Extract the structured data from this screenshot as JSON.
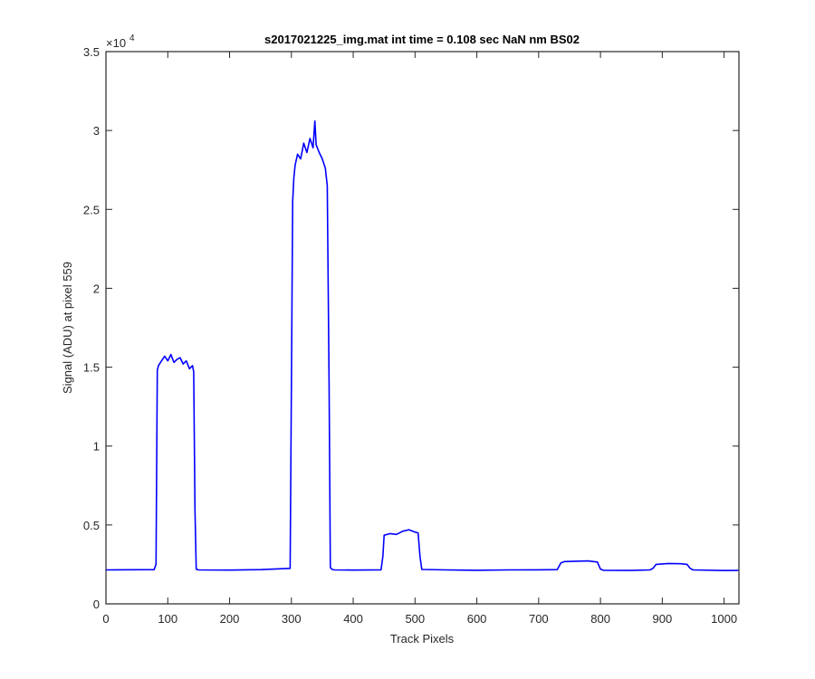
{
  "chart_data": {
    "type": "line",
    "title": "s2017021225_img.mat int time = 0.108 sec  NaN nm BS02",
    "xlabel": "Track Pixels",
    "ylabel": "Signal (ADU) at pixel 559",
    "xlim": [
      0,
      1024
    ],
    "ylim": [
      0,
      35000
    ],
    "x_ticks": [
      0,
      100,
      200,
      300,
      400,
      500,
      600,
      700,
      800,
      900,
      1000
    ],
    "x_tick_labels": [
      "0",
      "100",
      "200",
      "300",
      "400",
      "500",
      "600",
      "700",
      "800",
      "900",
      "1000"
    ],
    "y_ticks": [
      0,
      5000,
      10000,
      15000,
      20000,
      25000,
      30000,
      35000
    ],
    "y_tick_labels": [
      "0",
      "0.5",
      "1",
      "1.5",
      "2",
      "2.5",
      "3",
      "3.5"
    ],
    "y_exponent_label": "×10",
    "y_exponent_power": "4",
    "grid": false,
    "line_color": "#0000ff",
    "series": [
      {
        "x": [
          0,
          78,
          81,
          83,
          85,
          90,
          95,
          100,
          105,
          110,
          115,
          120,
          125,
          130,
          135,
          140,
          142,
          144,
          146,
          150,
          200,
          250,
          298,
          302,
          304,
          306,
          310,
          315,
          320,
          325,
          330,
          335,
          338,
          340,
          345,
          350,
          355,
          358,
          361,
          363,
          366,
          370,
          400,
          445,
          448,
          450,
          460,
          470,
          480,
          490,
          500,
          505,
          508,
          511,
          550,
          600,
          650,
          700,
          730,
          736,
          742,
          760,
          780,
          795,
          800,
          805,
          850,
          880,
          885,
          890,
          910,
          930,
          940,
          945,
          950,
          1000,
          1023
        ],
        "y": [
          2150,
          2170,
          2500,
          14800,
          15100,
          15400,
          15700,
          15400,
          15800,
          15300,
          15500,
          15600,
          15200,
          15400,
          14900,
          15100,
          14700,
          6000,
          2200,
          2150,
          2140,
          2170,
          2250,
          25500,
          27000,
          27800,
          28500,
          28200,
          29200,
          28600,
          29500,
          28900,
          30600,
          29100,
          28600,
          28200,
          27600,
          26500,
          14000,
          2300,
          2180,
          2150,
          2140,
          2160,
          3000,
          4350,
          4450,
          4400,
          4600,
          4700,
          4550,
          4500,
          3000,
          2180,
          2150,
          2130,
          2150,
          2160,
          2170,
          2600,
          2680,
          2700,
          2720,
          2650,
          2200,
          2130,
          2120,
          2150,
          2250,
          2500,
          2560,
          2540,
          2500,
          2250,
          2150,
          2110,
          2120
        ]
      }
    ]
  }
}
